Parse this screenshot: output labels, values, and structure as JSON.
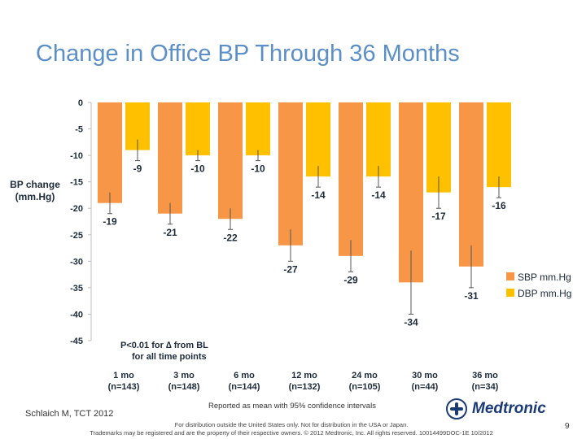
{
  "title": "Change in Office BP Through 36 Months",
  "ylabel_line1": "BP change",
  "ylabel_line2": "(mm.Hg)",
  "annotation_line1": "P<0.01  for ∆  from BL",
  "annotation_line2": "for all time points",
  "citation": "Schlaich M, TCT 2012",
  "note": "Reported as mean with 95% confidence intervals",
  "footer_line1": "For distribution outside the United States only. Not for distribution in the USA or Japan.",
  "footer_line2": "Trademarks may be registered and are the property of their respective owners. © 2012 Medtronic, Inc. All rights reserved.  10014499DOC-1E 10/2012",
  "logo_text": "Medtronic",
  "page_number": "9",
  "colors": {
    "sbp": "#f79646",
    "dbp": "#ffc000",
    "title": "#5b8fc7"
  },
  "chart_data": {
    "type": "bar",
    "categories": [
      "1 mo",
      "3 mo",
      "6 mo",
      "12 mo",
      "24 mo",
      "30 mo",
      "36 mo"
    ],
    "category_n": [
      "(n=143)",
      "(n=148)",
      "(n=144)",
      "(n=132)",
      "(n=105)",
      "(n=44)",
      "(n=34)"
    ],
    "series": [
      {
        "name": "SBP mm.Hg",
        "values": [
          -19,
          -21,
          -22,
          -27,
          -29,
          -34,
          -31
        ]
      },
      {
        "name": "DBP mm.Hg",
        "values": [
          -9,
          -10,
          -10,
          -14,
          -14,
          -17,
          -16
        ]
      }
    ],
    "error_bars": {
      "SBP mm.Hg": [
        [
          -21,
          -17
        ],
        [
          -23,
          -19
        ],
        [
          -24,
          -20
        ],
        [
          -30,
          -24
        ],
        [
          -32,
          -26
        ],
        [
          -40,
          -28
        ],
        [
          -35,
          -27
        ]
      ],
      "DBP mm.Hg": [
        [
          -11,
          -7
        ],
        [
          -11,
          -9
        ],
        [
          -11,
          -9
        ],
        [
          -16,
          -12
        ],
        [
          -16,
          -12
        ],
        [
          -20,
          -14
        ],
        [
          -18,
          -14
        ]
      ]
    },
    "ylim": [
      -45,
      0
    ],
    "yticks": [
      0,
      -5,
      -10,
      -15,
      -20,
      -25,
      -30,
      -35,
      -40,
      -45
    ],
    "legend_position": "right",
    "grid": false
  }
}
